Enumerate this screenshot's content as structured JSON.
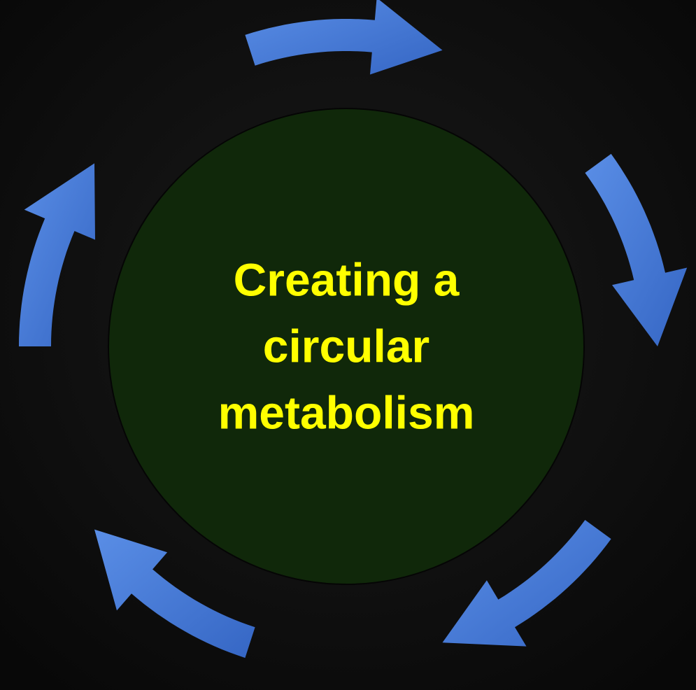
{
  "center": {
    "lines": [
      "Creating a",
      "circular",
      "metabolism"
    ]
  }
}
